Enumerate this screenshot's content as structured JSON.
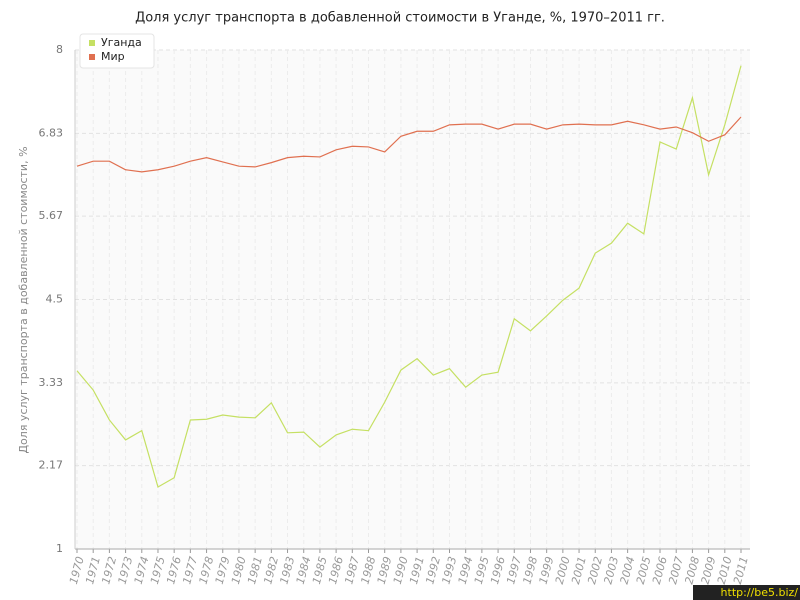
{
  "chart_data": {
    "type": "line",
    "title": "Доля услуг транспорта в добавленной стоимости в Уганде, %, 1970–2011 гг.",
    "y_label": "Доля услуг транспорта в добавленной стоимости, %",
    "watermark": "http://be5.biz/",
    "categories": [
      "1970",
      "1971",
      "1972",
      "1973",
      "1974",
      "1975",
      "1976",
      "1977",
      "1978",
      "1979",
      "1980",
      "1981",
      "1982",
      "1983",
      "1984",
      "1985",
      "1986",
      "1987",
      "1988",
      "1989",
      "1990",
      "1991",
      "1992",
      "1993",
      "1994",
      "1995",
      "1996",
      "1997",
      "1998",
      "1999",
      "2000",
      "2001",
      "2002",
      "2003",
      "2004",
      "2005",
      "2006",
      "2007",
      "2008",
      "2009",
      "2010",
      "2011"
    ],
    "series": [
      {
        "name": "Уганда",
        "color": "#c5e063",
        "values": [
          3.5,
          3.23,
          2.81,
          2.53,
          2.66,
          1.87,
          2.0,
          2.81,
          2.82,
          2.88,
          2.85,
          2.84,
          3.05,
          2.63,
          2.64,
          2.43,
          2.6,
          2.68,
          2.66,
          3.06,
          3.51,
          3.67,
          3.44,
          3.53,
          3.27,
          3.44,
          3.48,
          4.23,
          4.06,
          4.27,
          4.49,
          4.66,
          5.15,
          5.29,
          5.57,
          5.42,
          6.71,
          6.61,
          7.33,
          6.25,
          6.95,
          7.78
        ]
      },
      {
        "name": "Мир",
        "color": "#e07050",
        "values": [
          6.37,
          6.44,
          6.44,
          6.32,
          6.29,
          6.32,
          6.37,
          6.44,
          6.49,
          6.43,
          6.37,
          6.36,
          6.42,
          6.49,
          6.51,
          6.5,
          6.6,
          6.65,
          6.64,
          6.57,
          6.79,
          6.86,
          6.86,
          6.95,
          6.96,
          6.96,
          6.89,
          6.96,
          6.96,
          6.89,
          6.95,
          6.96,
          6.95,
          6.95,
          7.0,
          6.95,
          6.89,
          6.92,
          6.84,
          6.72,
          6.81,
          7.06
        ]
      }
    ],
    "ylim": [
      1,
      8
    ],
    "yticks": [
      1,
      2.17,
      3.33,
      4.5,
      5.67,
      6.83,
      8
    ],
    "grid": true,
    "legend": "top-left"
  }
}
